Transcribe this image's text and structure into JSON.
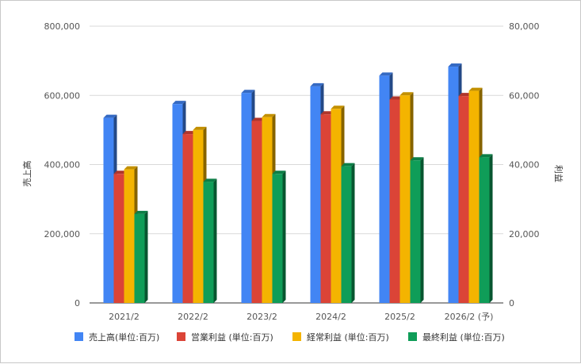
{
  "chart_data": {
    "type": "bar",
    "categories": [
      "2021/2",
      "2022/2",
      "2023/2",
      "2024/2",
      "2025/2",
      "2026/2 (予)"
    ],
    "y_left": {
      "label": "売上高",
      "range": [
        0,
        800000
      ],
      "ticks": [
        "0",
        "200,000",
        "400,000",
        "600,000",
        "800,000"
      ]
    },
    "y_right": {
      "label": "利益",
      "range": [
        0,
        80000
      ],
      "ticks": [
        "0",
        "20,000",
        "40,000",
        "60,000",
        "80,000"
      ]
    },
    "series": [
      {
        "name": "売上高(単位:百万)",
        "axis": "left",
        "color": "#4285f4",
        "values": [
          535000,
          575000,
          607000,
          626000,
          657000,
          683000
        ]
      },
      {
        "name": "営業利益 (単位:百万)",
        "axis": "right",
        "color": "#db4437",
        "values": [
          37300,
          48800,
          52600,
          54500,
          58800,
          59800
        ]
      },
      {
        "name": "経常利益 (単位:百万)",
        "axis": "right",
        "color": "#f4b400",
        "values": [
          38600,
          50000,
          53700,
          56100,
          60000,
          61300
        ]
      },
      {
        "name": "最終利益 (単位:百万)",
        "axis": "right",
        "color": "#0f9d58",
        "values": [
          25700,
          35000,
          37300,
          39500,
          41200,
          42100
        ]
      }
    ],
    "grid": true,
    "legend_position": "bottom"
  }
}
